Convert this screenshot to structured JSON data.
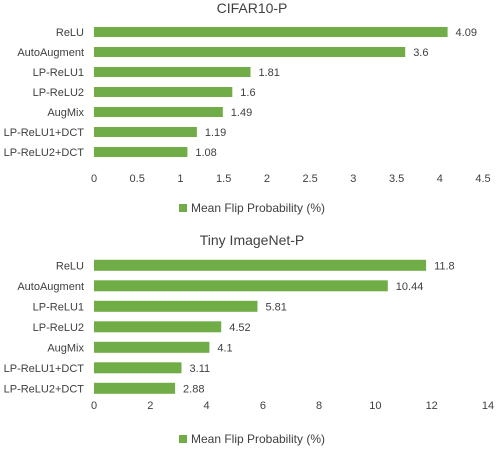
{
  "chart_data": [
    {
      "type": "bar",
      "orientation": "horizontal",
      "title": "CIFAR10-P",
      "categories": [
        "ReLU",
        "AutoAugment",
        "LP-ReLU1",
        "LP-ReLU2",
        "AugMix",
        "LP-ReLU1+DCT",
        "LP-ReLU2+DCT"
      ],
      "series": [
        {
          "name": "Mean Flip Probability (%)",
          "values": [
            4.09,
            3.6,
            1.81,
            1.6,
            1.49,
            1.19,
            1.08
          ],
          "color": "#70ad47"
        }
      ],
      "data_labels": [
        "4.09",
        "3.6",
        "1.81",
        "1.6",
        "1.49",
        "1.19",
        "1.08"
      ],
      "xticks": [
        "0",
        "0.5",
        "1",
        "1.5",
        "2",
        "2.5",
        "3",
        "3.5",
        "4",
        "4.5"
      ],
      "xlim": [
        0,
        4.5
      ],
      "grid": false,
      "legend_position": "bottom"
    },
    {
      "type": "bar",
      "orientation": "horizontal",
      "title": "Tiny ImageNet-P",
      "categories": [
        "ReLU",
        "AutoAugment",
        "LP-ReLU1",
        "LP-ReLU2",
        "AugMix",
        "LP-ReLU1+DCT",
        "LP-ReLU2+DCT"
      ],
      "series": [
        {
          "name": "Mean Flip Probability (%)",
          "values": [
            11.8,
            10.44,
            5.81,
            4.52,
            4.1,
            3.11,
            2.88
          ],
          "color": "#70ad47"
        }
      ],
      "data_labels": [
        "11.8",
        "10.44",
        "5.81",
        "4.52",
        "4.1",
        "3.11",
        "2.88"
      ],
      "xticks": [
        "0",
        "2",
        "4",
        "6",
        "8",
        "10",
        "12",
        "14"
      ],
      "xlim": [
        0,
        14
      ],
      "grid": false,
      "legend_position": "bottom"
    }
  ]
}
